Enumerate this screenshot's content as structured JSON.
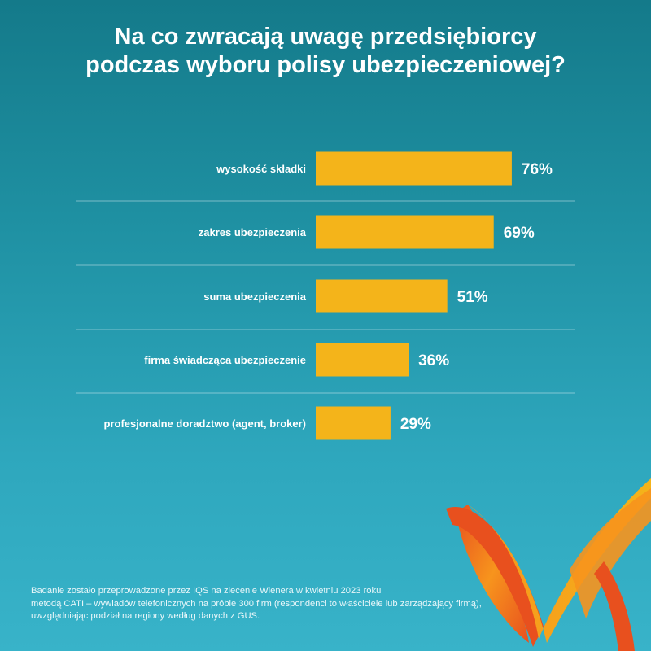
{
  "chart_data": {
    "type": "bar",
    "orientation": "horizontal",
    "title": "Na co zwracają uwagę przedsiębiorcy podczas wyboru polisy ubezpieczeniowej?",
    "title_lines": [
      "Na co zwracają uwagę przedsiębiorcy",
      "podczas wyboru polisy ubezpieczeniowej?"
    ],
    "categories": [
      "wysokość składki",
      "zakres ubezpieczenia",
      "suma ubezpieczenia",
      "firma świadcząca ubezpieczenie",
      "profesjonalne doradztwo (agent, broker)"
    ],
    "values": [
      76,
      69,
      51,
      36,
      29
    ],
    "value_labels": [
      "76%",
      "69%",
      "51%",
      "36%",
      "29%"
    ],
    "unit": "%",
    "xlim": [
      0,
      100
    ],
    "xlabel": "",
    "ylabel": "",
    "bar_color": "#f4b41a"
  },
  "footnote": {
    "lines": [
      "Badanie zostało przeprowadzone przez IQS na zlecenie Wienera w kwietniu 2023 roku",
      "metodą CATI – wywiadów telefonicznych na próbie 300 firm (respondenci to właściciele lub zarządzający firmą),",
      "uwzględniając podział na regiony według danych z GUS."
    ]
  },
  "logo": {
    "icon": "wiener-w-logo-icon",
    "colors": [
      "#e8501e",
      "#f7941d",
      "#f4b41a"
    ]
  }
}
